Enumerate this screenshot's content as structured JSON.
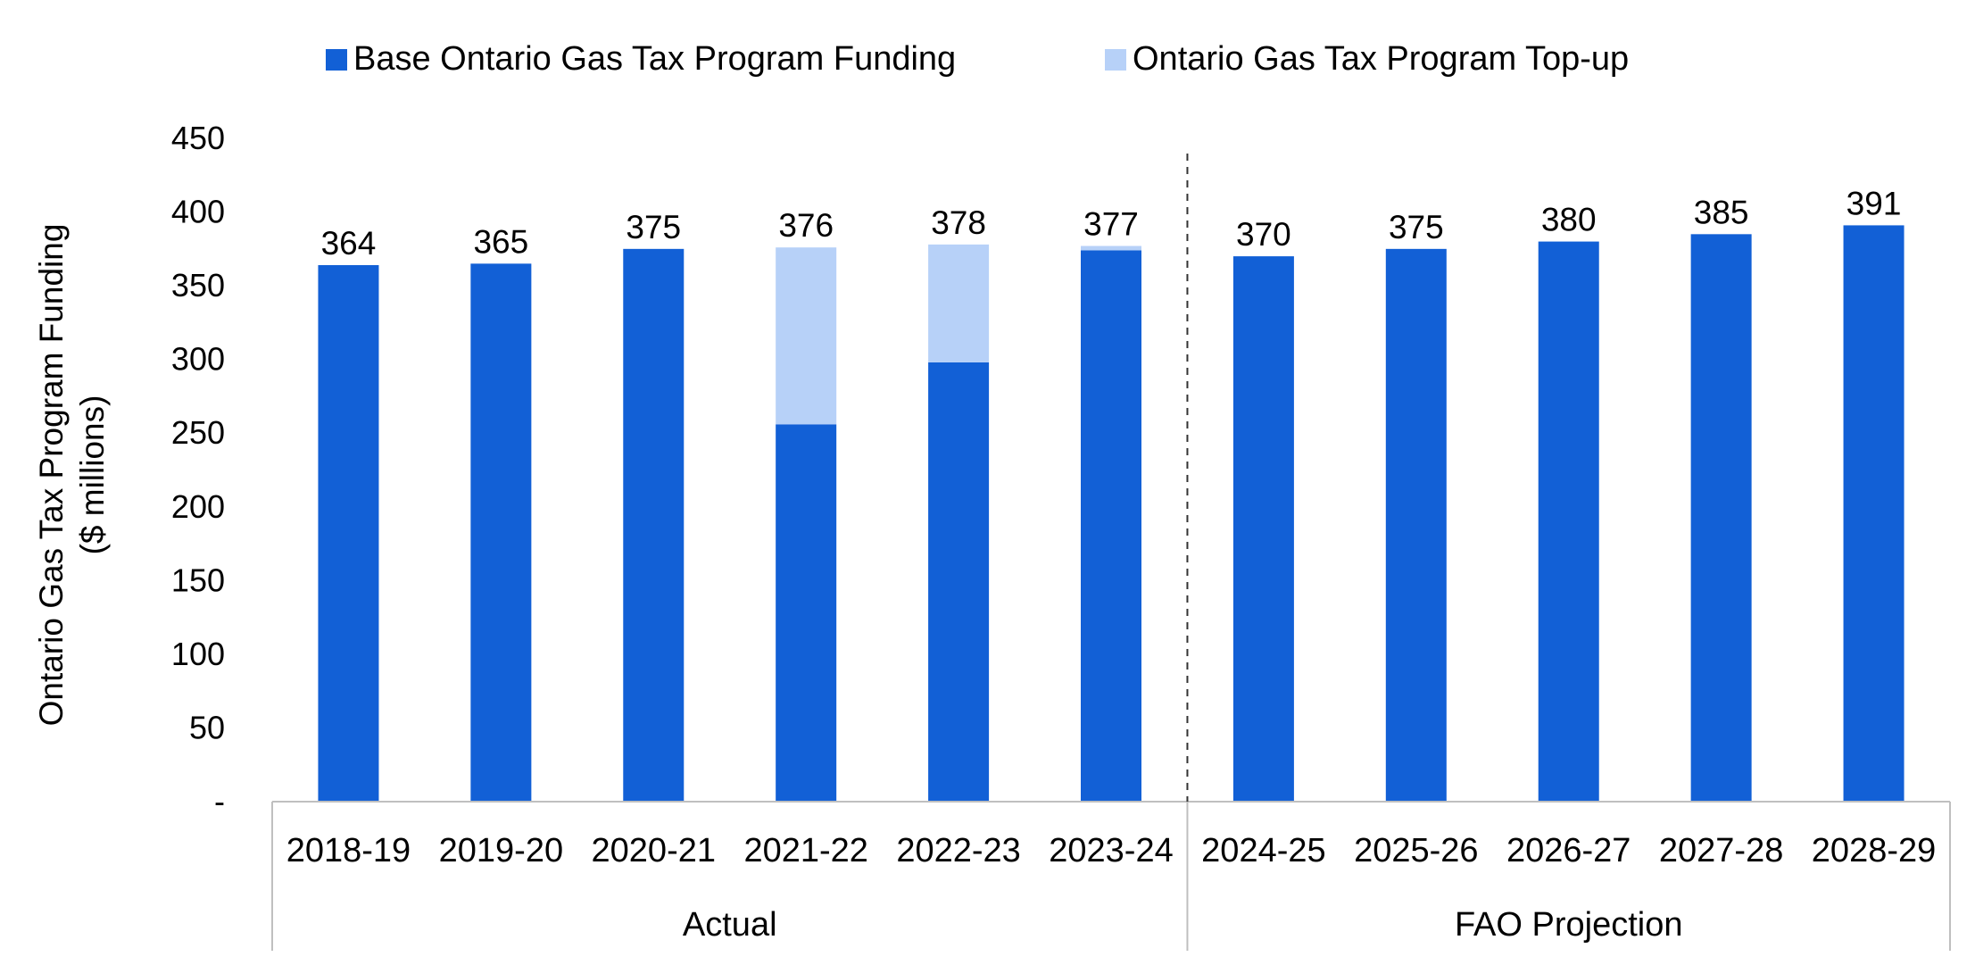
{
  "chart_data": {
    "type": "bar",
    "stacked": true,
    "title": "",
    "xlabel": "",
    "ylabel": "Ontario Gas Tax Program Funding",
    "ylabel_units": "($ millions)",
    "ylim": [
      0,
      450
    ],
    "yticks": [
      0,
      50,
      100,
      150,
      200,
      250,
      300,
      350,
      400,
      450
    ],
    "ytick_labels": [
      "-",
      "50",
      "100",
      "150",
      "200",
      "250",
      "300",
      "350",
      "400",
      "450"
    ],
    "grid": false,
    "legend_position": "top",
    "categories": [
      "2018-19",
      "2019-20",
      "2020-21",
      "2021-22",
      "2022-23",
      "2023-24",
      "2024-25",
      "2025-26",
      "2026-27",
      "2027-28",
      "2028-29"
    ],
    "series": [
      {
        "name": "Base Ontario Gas Tax Program Funding",
        "color": "#1260D6",
        "values": [
          364,
          365,
          375,
          256,
          298,
          374,
          370,
          375,
          380,
          385,
          391
        ]
      },
      {
        "name": "Ontario Gas Tax Program Top-up",
        "color": "#B7D1F8",
        "values": [
          0,
          0,
          0,
          120,
          80,
          3,
          0,
          0,
          0,
          0,
          0
        ]
      }
    ],
    "totals": [
      "364",
      "365",
      "375",
      "376",
      "378",
      "377",
      "370",
      "375",
      "380",
      "385",
      "391"
    ],
    "groups": [
      {
        "label": "Actual",
        "categories": [
          "2018-19",
          "2019-20",
          "2020-21",
          "2021-22",
          "2022-23",
          "2023-24"
        ]
      },
      {
        "label": "FAO Projection",
        "categories": [
          "2024-25",
          "2025-26",
          "2026-27",
          "2027-28",
          "2028-29"
        ]
      }
    ]
  }
}
